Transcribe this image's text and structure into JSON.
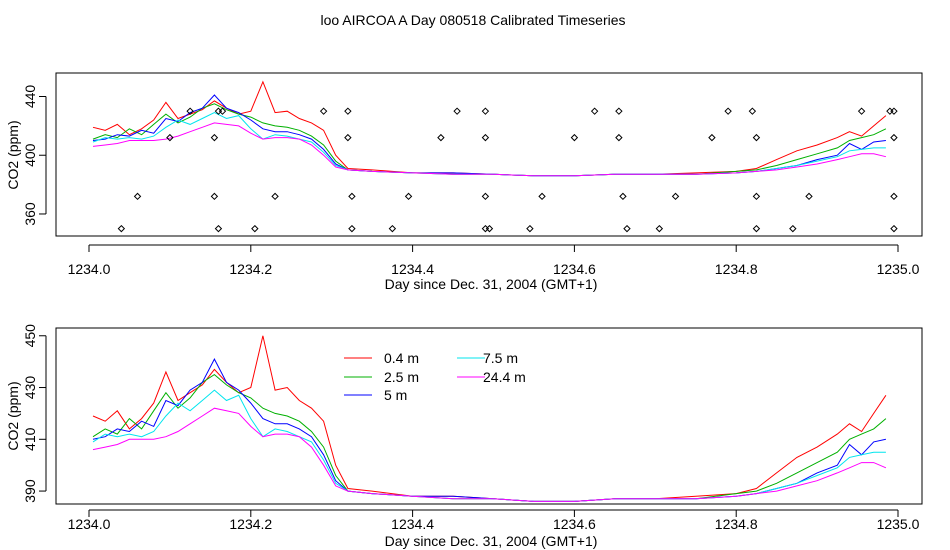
{
  "figure_title": "loo AIRCOA A  Day 080518  Calibrated Timeseries",
  "chart_data": [
    {
      "type": "line",
      "panel": "top",
      "xlabel": "Day since Dec. 31, 2004 (GMT+1)",
      "ylabel": "CO2 (ppm)",
      "xlim": [
        1234.0,
        1235.0
      ],
      "ylim": [
        345,
        456
      ],
      "xticks": [
        1234.0,
        1234.2,
        1234.4,
        1234.6,
        1234.8,
        1235.0
      ],
      "xtick_labels": [
        "1234.0",
        "1234.2",
        "1234.4",
        "1234.6",
        "1234.8",
        "1235.0"
      ],
      "yticks": [
        360,
        400,
        440
      ],
      "ytick_labels": [
        "360",
        "400",
        "440"
      ],
      "legend": "none",
      "series": [
        {
          "key": "s04",
          "color": "#ff0000",
          "x": [
            1234.005,
            1234.02,
            1234.035,
            1234.05,
            1234.065,
            1234.08,
            1234.095,
            1234.11,
            1234.125,
            1234.14,
            1234.155,
            1234.17,
            1234.185,
            1234.2,
            1234.215,
            1234.23,
            1234.245,
            1234.26,
            1234.275,
            1234.29,
            1234.305,
            1234.32,
            1234.35,
            1234.4,
            1234.45,
            1234.5,
            1234.55,
            1234.6,
            1234.65,
            1234.7,
            1234.75,
            1234.8,
            1234.825,
            1234.85,
            1234.875,
            1234.9,
            1234.925,
            1234.94,
            1234.955,
            1234.97,
            1234.985
          ],
          "y": [
            419,
            417,
            421,
            414,
            418,
            424,
            436,
            425,
            428,
            431,
            437,
            432,
            428,
            430,
            450,
            429,
            430,
            425,
            422,
            417,
            400,
            391,
            390,
            388,
            388,
            387,
            386,
            386,
            387,
            387,
            388,
            389,
            391,
            397,
            403,
            407,
            412,
            416,
            413,
            420,
            427
          ]
        },
        {
          "key": "s25",
          "color": "#00b000",
          "x": [
            1234.005,
            1234.02,
            1234.035,
            1234.05,
            1234.065,
            1234.08,
            1234.095,
            1234.11,
            1234.125,
            1234.14,
            1234.155,
            1234.17,
            1234.185,
            1234.2,
            1234.215,
            1234.23,
            1234.245,
            1234.26,
            1234.275,
            1234.29,
            1234.305,
            1234.32,
            1234.35,
            1234.4,
            1234.45,
            1234.5,
            1234.55,
            1234.6,
            1234.65,
            1234.7,
            1234.75,
            1234.8,
            1234.825,
            1234.85,
            1234.875,
            1234.9,
            1234.925,
            1234.94,
            1234.955,
            1234.97,
            1234.985
          ],
          "y": [
            411,
            414,
            412,
            418,
            414,
            421,
            428,
            422,
            426,
            432,
            435,
            431,
            428,
            426,
            422,
            420,
            419,
            417,
            413,
            407,
            396,
            390,
            389,
            388,
            387,
            387,
            386,
            386,
            387,
            387,
            387,
            389,
            390,
            393,
            397,
            401,
            405,
            410,
            412,
            414,
            418
          ]
        },
        {
          "key": "s5",
          "color": "#0000ff",
          "x": [
            1234.005,
            1234.02,
            1234.035,
            1234.05,
            1234.065,
            1234.08,
            1234.095,
            1234.11,
            1234.125,
            1234.14,
            1234.155,
            1234.17,
            1234.185,
            1234.2,
            1234.215,
            1234.23,
            1234.245,
            1234.26,
            1234.275,
            1234.29,
            1234.305,
            1234.32,
            1234.35,
            1234.4,
            1234.45,
            1234.5,
            1234.55,
            1234.6,
            1234.65,
            1234.7,
            1234.75,
            1234.8,
            1234.825,
            1234.85,
            1234.875,
            1234.9,
            1234.925,
            1234.94,
            1234.955,
            1234.97,
            1234.985
          ],
          "y": [
            410,
            411,
            414,
            413,
            417,
            415,
            425,
            423,
            429,
            432,
            441,
            432,
            429,
            424,
            418,
            416,
            416,
            414,
            411,
            404,
            394,
            390,
            389,
            388,
            388,
            387,
            386,
            386,
            387,
            387,
            387,
            388,
            389,
            391,
            393,
            397,
            400,
            408,
            404,
            409,
            410
          ]
        },
        {
          "key": "s75",
          "color": "#00e5ee",
          "x": [
            1234.005,
            1234.02,
            1234.035,
            1234.05,
            1234.065,
            1234.08,
            1234.095,
            1234.11,
            1234.125,
            1234.14,
            1234.155,
            1234.17,
            1234.185,
            1234.2,
            1234.215,
            1234.23,
            1234.245,
            1234.26,
            1234.275,
            1234.29,
            1234.305,
            1234.32,
            1234.35,
            1234.4,
            1234.45,
            1234.5,
            1234.55,
            1234.6,
            1234.65,
            1234.7,
            1234.75,
            1234.8,
            1234.825,
            1234.85,
            1234.875,
            1234.9,
            1234.925,
            1234.94,
            1234.955,
            1234.97,
            1234.985
          ],
          "y": [
            409,
            412,
            411,
            412,
            411,
            413,
            419,
            424,
            421,
            425,
            429,
            425,
            427,
            418,
            411,
            414,
            413,
            411,
            409,
            402,
            393,
            390,
            389,
            388,
            387,
            387,
            386,
            386,
            387,
            387,
            387,
            388,
            389,
            391,
            393,
            396,
            399,
            403,
            404,
            405,
            405
          ]
        },
        {
          "key": "s244",
          "color": "#ff00ff",
          "x": [
            1234.005,
            1234.02,
            1234.035,
            1234.05,
            1234.065,
            1234.08,
            1234.095,
            1234.11,
            1234.125,
            1234.14,
            1234.155,
            1234.17,
            1234.185,
            1234.2,
            1234.215,
            1234.23,
            1234.245,
            1234.26,
            1234.275,
            1234.29,
            1234.305,
            1234.32,
            1234.35,
            1234.4,
            1234.45,
            1234.5,
            1234.55,
            1234.6,
            1234.65,
            1234.7,
            1234.75,
            1234.8,
            1234.825,
            1234.85,
            1234.875,
            1234.9,
            1234.925,
            1234.94,
            1234.955,
            1234.97,
            1234.985
          ],
          "y": [
            406,
            407,
            408,
            410,
            410,
            410,
            411,
            413,
            416,
            419,
            422,
            421,
            420,
            415,
            411,
            412,
            412,
            411,
            407,
            400,
            392,
            390,
            389,
            388,
            387,
            387,
            386,
            386,
            387,
            387,
            387,
            388,
            389,
            390,
            392,
            394,
            397,
            399,
            401,
            401,
            399
          ]
        }
      ],
      "markers": {
        "symbol": "open-diamond",
        "color": "#000000",
        "x": [
          1234.04,
          1234.06,
          1234.1,
          1234.125,
          1234.155,
          1234.155,
          1234.16,
          1234.16,
          1234.165,
          1234.205,
          1234.23,
          1234.29,
          1234.32,
          1234.32,
          1234.325,
          1234.325,
          1234.375,
          1234.395,
          1234.435,
          1234.455,
          1234.49,
          1234.49,
          1234.49,
          1234.49,
          1234.495,
          1234.545,
          1234.56,
          1234.6,
          1234.625,
          1234.655,
          1234.655,
          1234.66,
          1234.665,
          1234.705,
          1234.725,
          1234.77,
          1234.79,
          1234.82,
          1234.825,
          1234.825,
          1234.825,
          1234.87,
          1234.89,
          1234.955,
          1234.99,
          1234.995,
          1234.995,
          1234.995,
          1234.995
        ],
        "y": [
          350,
          372,
          412,
          430,
          412,
          372,
          350,
          430,
          430,
          350,
          372,
          430,
          430,
          412,
          372,
          350,
          350,
          372,
          412,
          430,
          412,
          430,
          372,
          350,
          350,
          350,
          372,
          412,
          430,
          430,
          412,
          372,
          350,
          350,
          372,
          412,
          430,
          430,
          412,
          372,
          350,
          350,
          372,
          430,
          430,
          412,
          372,
          350,
          430
        ]
      }
    },
    {
      "type": "line",
      "panel": "bottom",
      "xlabel": "Day since Dec. 31, 2004 (GMT+1)",
      "ylabel": "CO2 (ppm)",
      "xlim": [
        1234.0,
        1235.0
      ],
      "ylim": [
        385,
        453
      ],
      "xticks": [
        1234.0,
        1234.2,
        1234.4,
        1234.6,
        1234.8,
        1235.0
      ],
      "xtick_labels": [
        "1234.0",
        "1234.2",
        "1234.4",
        "1234.6",
        "1234.8",
        "1235.0"
      ],
      "yticks": [
        390,
        410,
        430,
        450
      ],
      "ytick_labels": [
        "390",
        "410",
        "430",
        "450"
      ],
      "legend": "top-left",
      "series": [
        {
          "name": "0.4 m",
          "key": "s04",
          "color": "#ff0000"
        },
        {
          "name": "2.5 m",
          "key": "s25",
          "color": "#00b000"
        },
        {
          "name": "5 m",
          "key": "s5",
          "color": "#0000ff"
        },
        {
          "name": "7.5 m",
          "key": "s75",
          "color": "#00e5ee"
        },
        {
          "name": "24.4 m",
          "key": "s244",
          "color": "#ff00ff"
        }
      ]
    }
  ]
}
